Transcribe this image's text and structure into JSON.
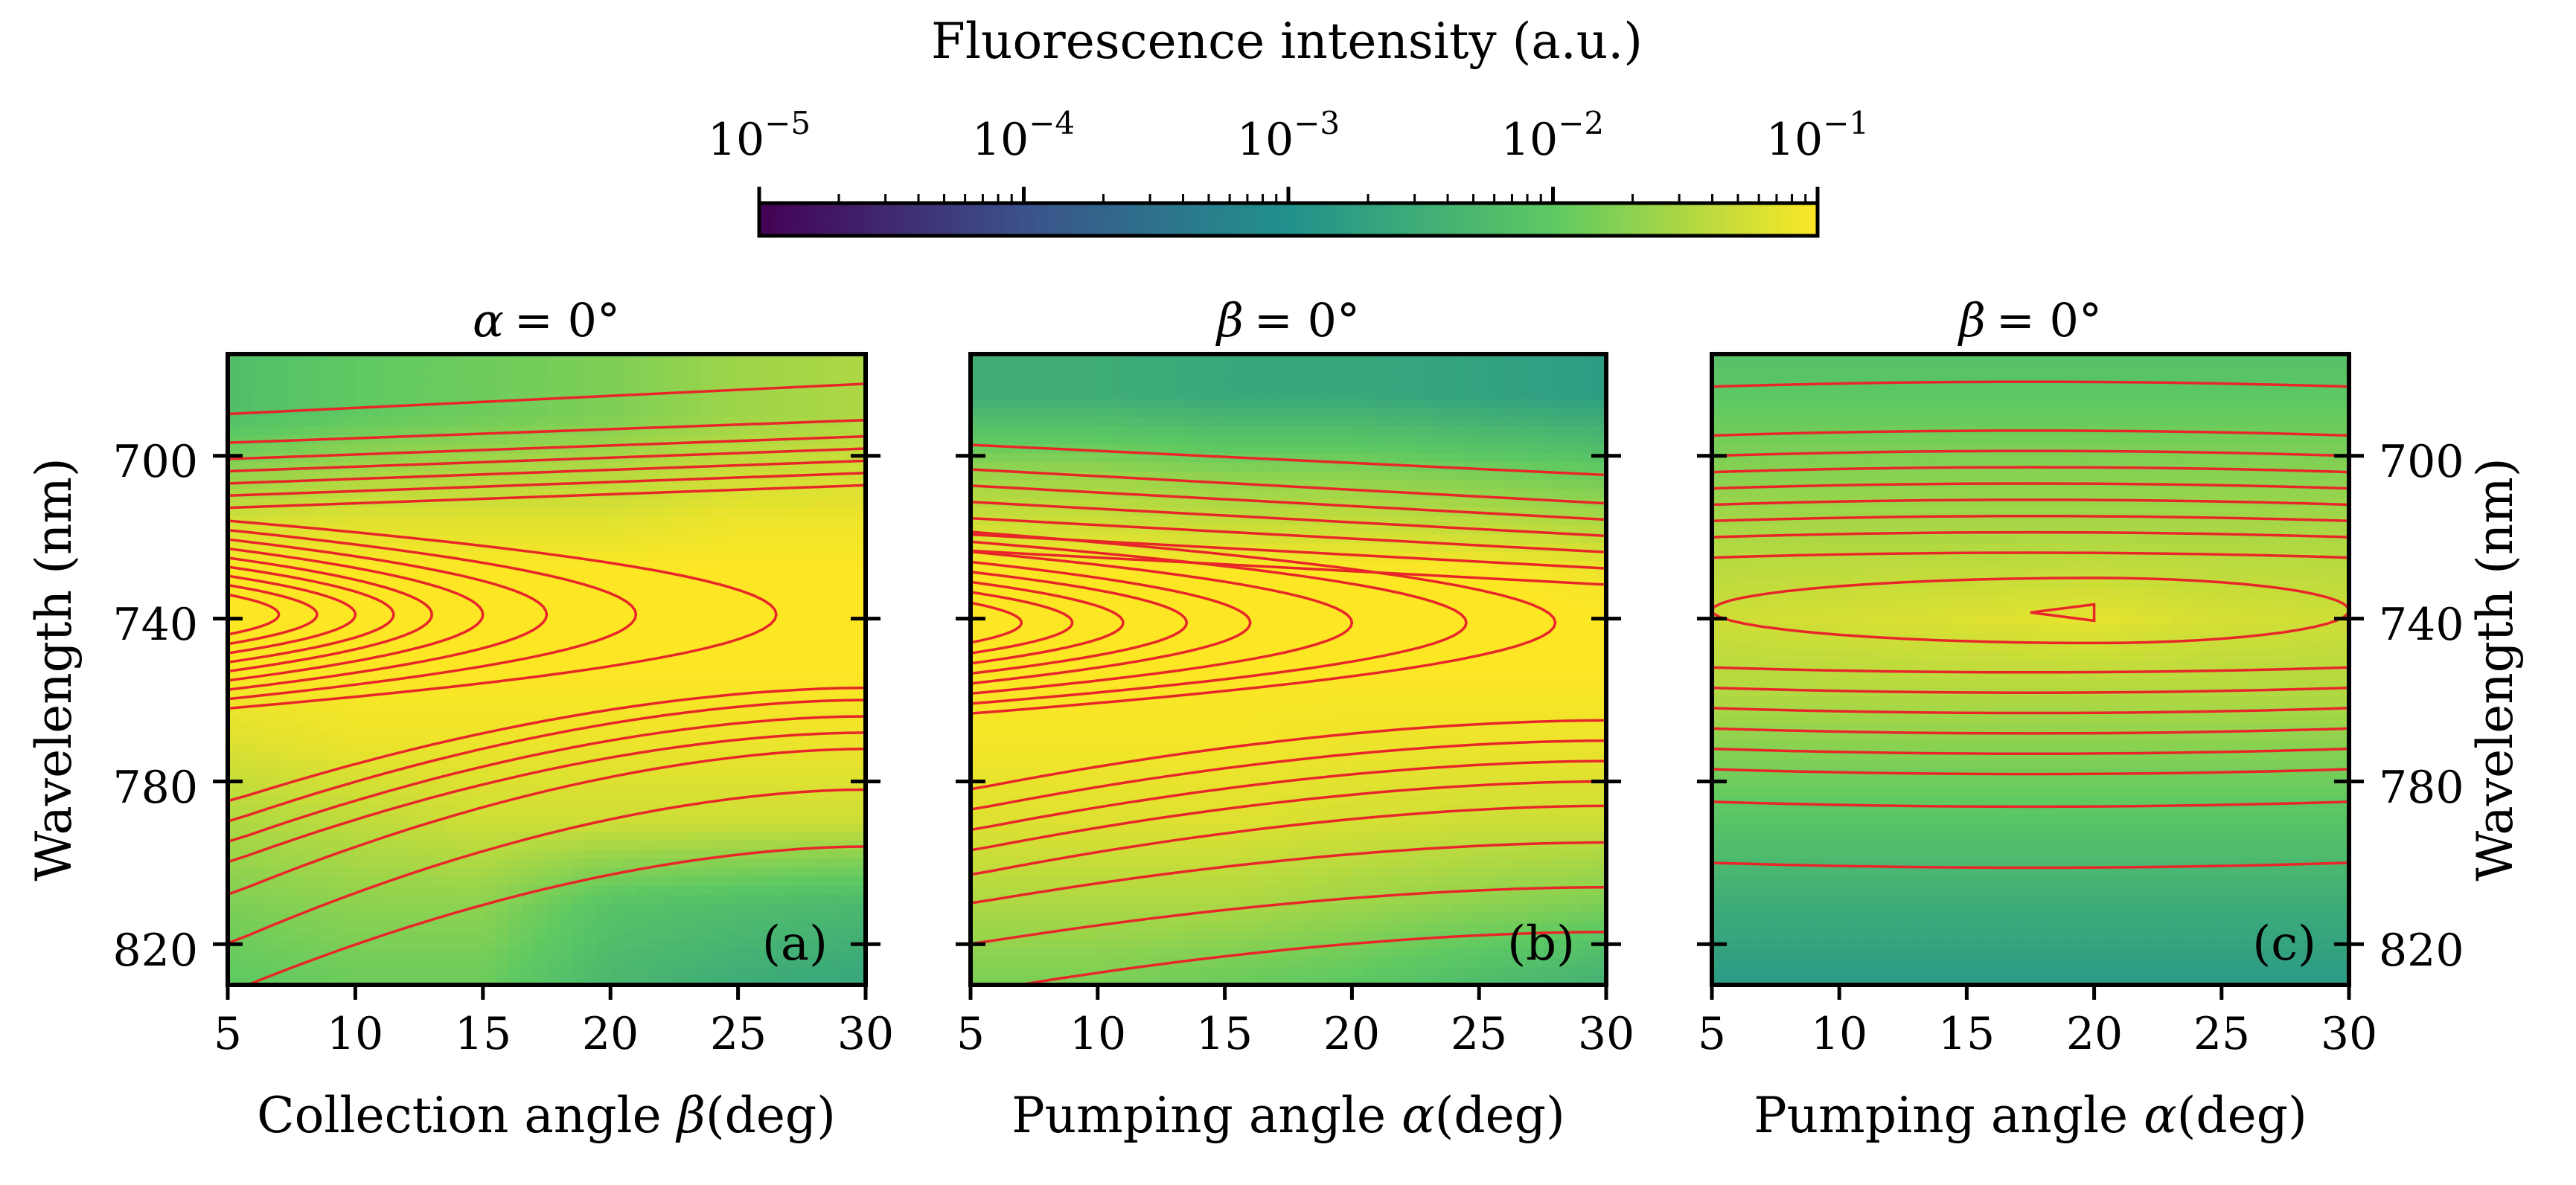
{
  "colorbar": {
    "title": "Fluorescence intensity (a.u.)",
    "scale": "log",
    "range": [
      1e-05,
      0.1
    ],
    "ticks": [
      {
        "base": "10",
        "exp": "−5"
      },
      {
        "base": "10",
        "exp": "−4"
      },
      {
        "base": "10",
        "exp": "−3"
      },
      {
        "base": "10",
        "exp": "−2"
      },
      {
        "base": "10",
        "exp": "−1"
      }
    ],
    "colormap": [
      "#440154",
      "#3b528b",
      "#21918c",
      "#5ec962",
      "#fde725"
    ]
  },
  "contour_color": "#e8262a",
  "chart_data": [
    {
      "type": "heatmap",
      "panel_label": "(a)",
      "title_symbol": "α",
      "title_value": "= 0°",
      "xlabel_text": "Collection angle ",
      "xlabel_symbol": "β",
      "xlabel_unit": "(deg)",
      "ylabel": "Wavelength (nm)",
      "ylabel_side": "left",
      "xlim": [
        5,
        30
      ],
      "ylim": [
        675,
        830
      ],
      "xticks": [
        "5",
        "10",
        "15",
        "20",
        "25",
        "30"
      ],
      "yticks": [
        "700",
        "740",
        "780",
        "820"
      ],
      "x": [
        5,
        10,
        15,
        20,
        25,
        30
      ],
      "y": [
        690,
        715,
        728,
        740,
        752,
        770,
        790,
        810,
        828
      ],
      "log10_intensity": [
        [
          -2.2,
          -2.0,
          -1.9,
          -1.8,
          -1.6,
          -1.5
        ],
        [
          -1.3,
          -1.2,
          -1.2,
          -1.2,
          -1.1,
          -1.1
        ],
        [
          -1.0,
          -1.0,
          -1.0,
          -1.0,
          -1.0,
          -1.0
        ],
        [
          -0.85,
          -0.85,
          -0.9,
          -0.9,
          -1.0,
          -1.0
        ],
        [
          -1.0,
          -1.0,
          -1.0,
          -1.0,
          -1.0,
          -1.0
        ],
        [
          -1.2,
          -1.1,
          -1.1,
          -1.1,
          -1.1,
          -1.1
        ],
        [
          -1.5,
          -1.4,
          -1.3,
          -1.3,
          -1.3,
          -1.3
        ],
        [
          -1.8,
          -1.7,
          -1.7,
          -2.1,
          -2.2,
          -2.3
        ],
        [
          -2.0,
          -1.9,
          -1.9,
          -2.3,
          -2.5,
          -2.6
        ]
      ]
    },
    {
      "type": "heatmap",
      "panel_label": "(b)",
      "title_symbol": "β",
      "title_value": "= 0°",
      "xlabel_text": "Pumping angle ",
      "xlabel_symbol": "α",
      "xlabel_unit": "(deg)",
      "ylabel": "",
      "ylabel_side": "none",
      "xlim": [
        5,
        30
      ],
      "ylim": [
        675,
        830
      ],
      "xticks": [
        "5",
        "10",
        "15",
        "20",
        "25",
        "30"
      ],
      "yticks": [],
      "x": [
        5,
        10,
        15,
        20,
        25,
        30
      ],
      "y": [
        685,
        705,
        728,
        740,
        752,
        770,
        790,
        810,
        828
      ],
      "log10_intensity": [
        [
          -2.5,
          -2.5,
          -2.6,
          -2.6,
          -2.7,
          -2.8
        ],
        [
          -1.6,
          -1.6,
          -1.7,
          -1.7,
          -1.8,
          -1.9
        ],
        [
          -1.0,
          -1.0,
          -1.0,
          -1.0,
          -1.0,
          -1.1
        ],
        [
          -0.85,
          -0.85,
          -0.85,
          -0.9,
          -0.95,
          -1.0
        ],
        [
          -1.0,
          -1.0,
          -1.0,
          -1.0,
          -1.0,
          -1.0
        ],
        [
          -1.05,
          -1.05,
          -1.05,
          -1.1,
          -1.1,
          -1.1
        ],
        [
          -1.2,
          -1.2,
          -1.2,
          -1.25,
          -1.3,
          -1.3
        ],
        [
          -1.5,
          -1.5,
          -1.5,
          -1.6,
          -1.7,
          -1.8
        ],
        [
          -1.8,
          -1.8,
          -1.9,
          -2.0,
          -2.2,
          -2.4
        ]
      ]
    },
    {
      "type": "heatmap",
      "panel_label": "(c)",
      "title_symbol": "β",
      "title_value": "= 0°",
      "xlabel_text": "Pumping angle ",
      "xlabel_symbol": "α",
      "xlabel_unit": "(deg)",
      "ylabel": "Wavelength (nm)",
      "ylabel_side": "right",
      "xlim": [
        5,
        30
      ],
      "ylim": [
        675,
        830
      ],
      "xticks": [
        "5",
        "10",
        "15",
        "20",
        "25",
        "30"
      ],
      "yticks": [
        "700",
        "740",
        "780",
        "820"
      ],
      "x": [
        5,
        10,
        15,
        20,
        25,
        30
      ],
      "y": [
        680,
        700,
        720,
        740,
        760,
        780,
        800,
        815,
        828
      ],
      "log10_intensity": [
        [
          -2.1,
          -2.1,
          -2.1,
          -2.1,
          -2.1,
          -2.1
        ],
        [
          -1.8,
          -1.8,
          -1.8,
          -1.8,
          -1.8,
          -1.8
        ],
        [
          -1.5,
          -1.5,
          -1.5,
          -1.5,
          -1.5,
          -1.5
        ],
        [
          -1.3,
          -1.25,
          -1.2,
          -1.15,
          -1.25,
          -1.3
        ],
        [
          -1.5,
          -1.5,
          -1.5,
          -1.5,
          -1.5,
          -1.5
        ],
        [
          -1.9,
          -1.9,
          -1.9,
          -1.9,
          -1.9,
          -1.9
        ],
        [
          -2.3,
          -2.3,
          -2.3,
          -2.3,
          -2.3,
          -2.3
        ],
        [
          -2.6,
          -2.6,
          -2.6,
          -2.6,
          -2.6,
          -2.6
        ],
        [
          -2.8,
          -2.8,
          -2.8,
          -2.8,
          -2.8,
          -2.8
        ]
      ]
    }
  ]
}
